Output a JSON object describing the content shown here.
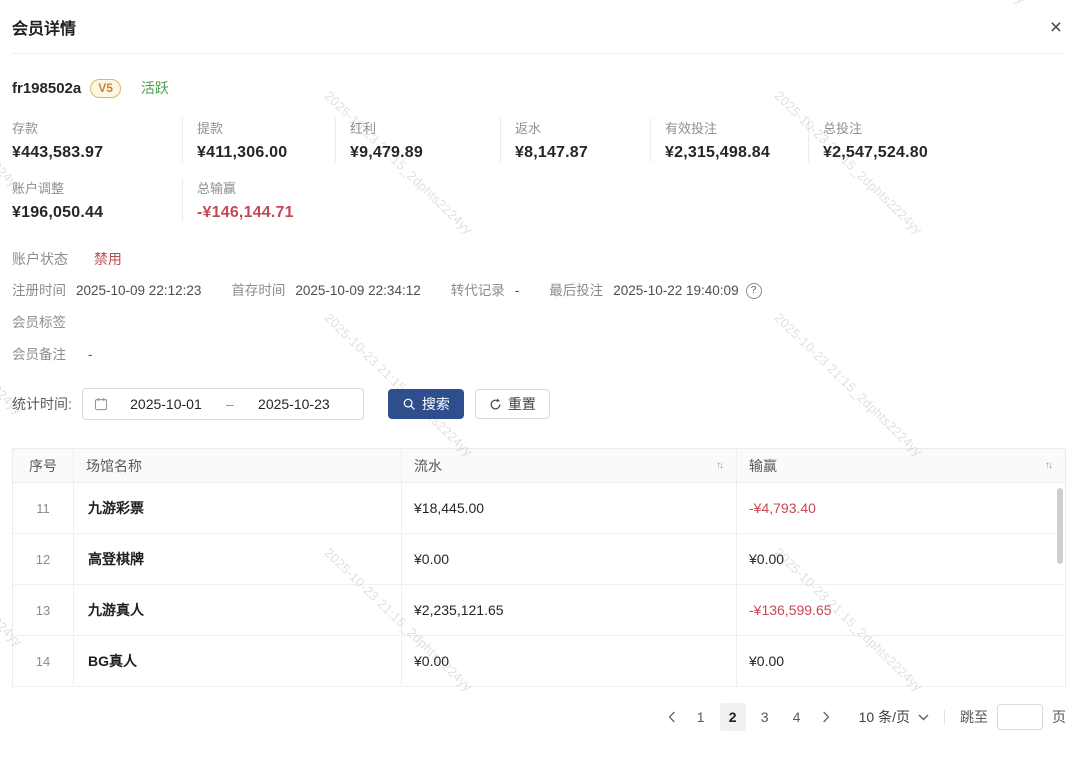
{
  "header": {
    "title": "会员详情",
    "close_icon": "×"
  },
  "member": {
    "id": "fr198502a",
    "level": "V5",
    "status": "活跃"
  },
  "stats": [
    {
      "key": "deposit",
      "label": "存款",
      "value": "¥443,583.97",
      "negative": false
    },
    {
      "key": "withdrawal",
      "label": "提款",
      "value": "¥411,306.00",
      "negative": false
    },
    {
      "key": "bonus",
      "label": "红利",
      "value": "¥9,479.89",
      "negative": false
    },
    {
      "key": "rebate",
      "label": "返水",
      "value": "¥8,147.87",
      "negative": false
    },
    {
      "key": "valid-bet",
      "label": "有效投注",
      "value": "¥2,315,498.84",
      "negative": false
    },
    {
      "key": "total-bet",
      "label": "总投注",
      "value": "¥2,547,524.80",
      "negative": false
    },
    {
      "key": "adjustment",
      "label": "账户调整",
      "value": "¥196,050.44",
      "negative": false
    },
    {
      "key": "total-winloss",
      "label": "总输赢",
      "value": "-¥146,144.71",
      "negative": true
    }
  ],
  "account_status": {
    "label": "账户状态",
    "value": "禁用"
  },
  "info_row": [
    {
      "key": "register-time",
      "label": "注册时间",
      "value": "2025-10-09 22:12:23",
      "help": false
    },
    {
      "key": "first-deposit-time",
      "label": "首存时间",
      "value": "2025-10-09 22:34:12",
      "help": false
    },
    {
      "key": "transfer-record",
      "label": "转代记录",
      "value": "-",
      "help": false
    },
    {
      "key": "last-bet",
      "label": "最后投注",
      "value": "2025-10-22 19:40:09",
      "help": true
    }
  ],
  "tags_row": {
    "label": "会员标签",
    "value": ""
  },
  "remark_row": {
    "label": "会员备注",
    "value": "-"
  },
  "filter": {
    "label": "统计时间:",
    "date_start": "2025-10-01",
    "separator": "–",
    "date_end": "2025-10-23",
    "search_label": "搜索",
    "reset_label": "重置"
  },
  "table": {
    "columns": [
      "序号",
      "场馆名称",
      "流水",
      "输赢"
    ],
    "rows": [
      {
        "index": "11",
        "venue": "九游彩票",
        "turnover": "¥18,445.00",
        "winloss": "-¥4,793.40",
        "negative": true
      },
      {
        "index": "12",
        "venue": "高登棋牌",
        "turnover": "¥0.00",
        "winloss": "¥0.00",
        "negative": false
      },
      {
        "index": "13",
        "venue": "九游真人",
        "turnover": "¥2,235,121.65",
        "winloss": "-¥136,599.65",
        "negative": true
      },
      {
        "index": "14",
        "venue": "BG真人",
        "turnover": "¥0.00",
        "winloss": "¥0.00",
        "negative": false
      }
    ]
  },
  "pagination": {
    "pages": [
      "1",
      "2",
      "3",
      "4"
    ],
    "active": "2",
    "page_size": "10 条/页",
    "jump_label": "跳至",
    "jump_unit": "页",
    "jump_value": ""
  },
  "icons": {
    "close": "×",
    "help": "?",
    "sort_asc": "↑",
    "sort_desc": "↓",
    "calendar": "calendar-outline",
    "search": "magnifier",
    "reset": "circular-arrow",
    "prev": "chevron-left",
    "next": "chevron-right",
    "caret": "chevron-down"
  },
  "colors": {
    "primary_blue": "#2e4e8e",
    "negative_red": "#c34a52",
    "positive_green": "#4aa14e",
    "badge_gold": "#c9872f",
    "watermark_gray": "#d4d4d4"
  },
  "watermark": {
    "text": "2025-10-23 21:15_2dphts2224yy",
    "positions": [
      [
        332,
        88
      ],
      [
        782,
        88
      ],
      [
        332,
        310
      ],
      [
        782,
        310
      ],
      [
        332,
        545
      ],
      [
        782,
        545
      ],
      [
        -118,
        45
      ],
      [
        -118,
        268
      ],
      [
        -118,
        500
      ],
      [
        885,
        -142
      ]
    ]
  }
}
